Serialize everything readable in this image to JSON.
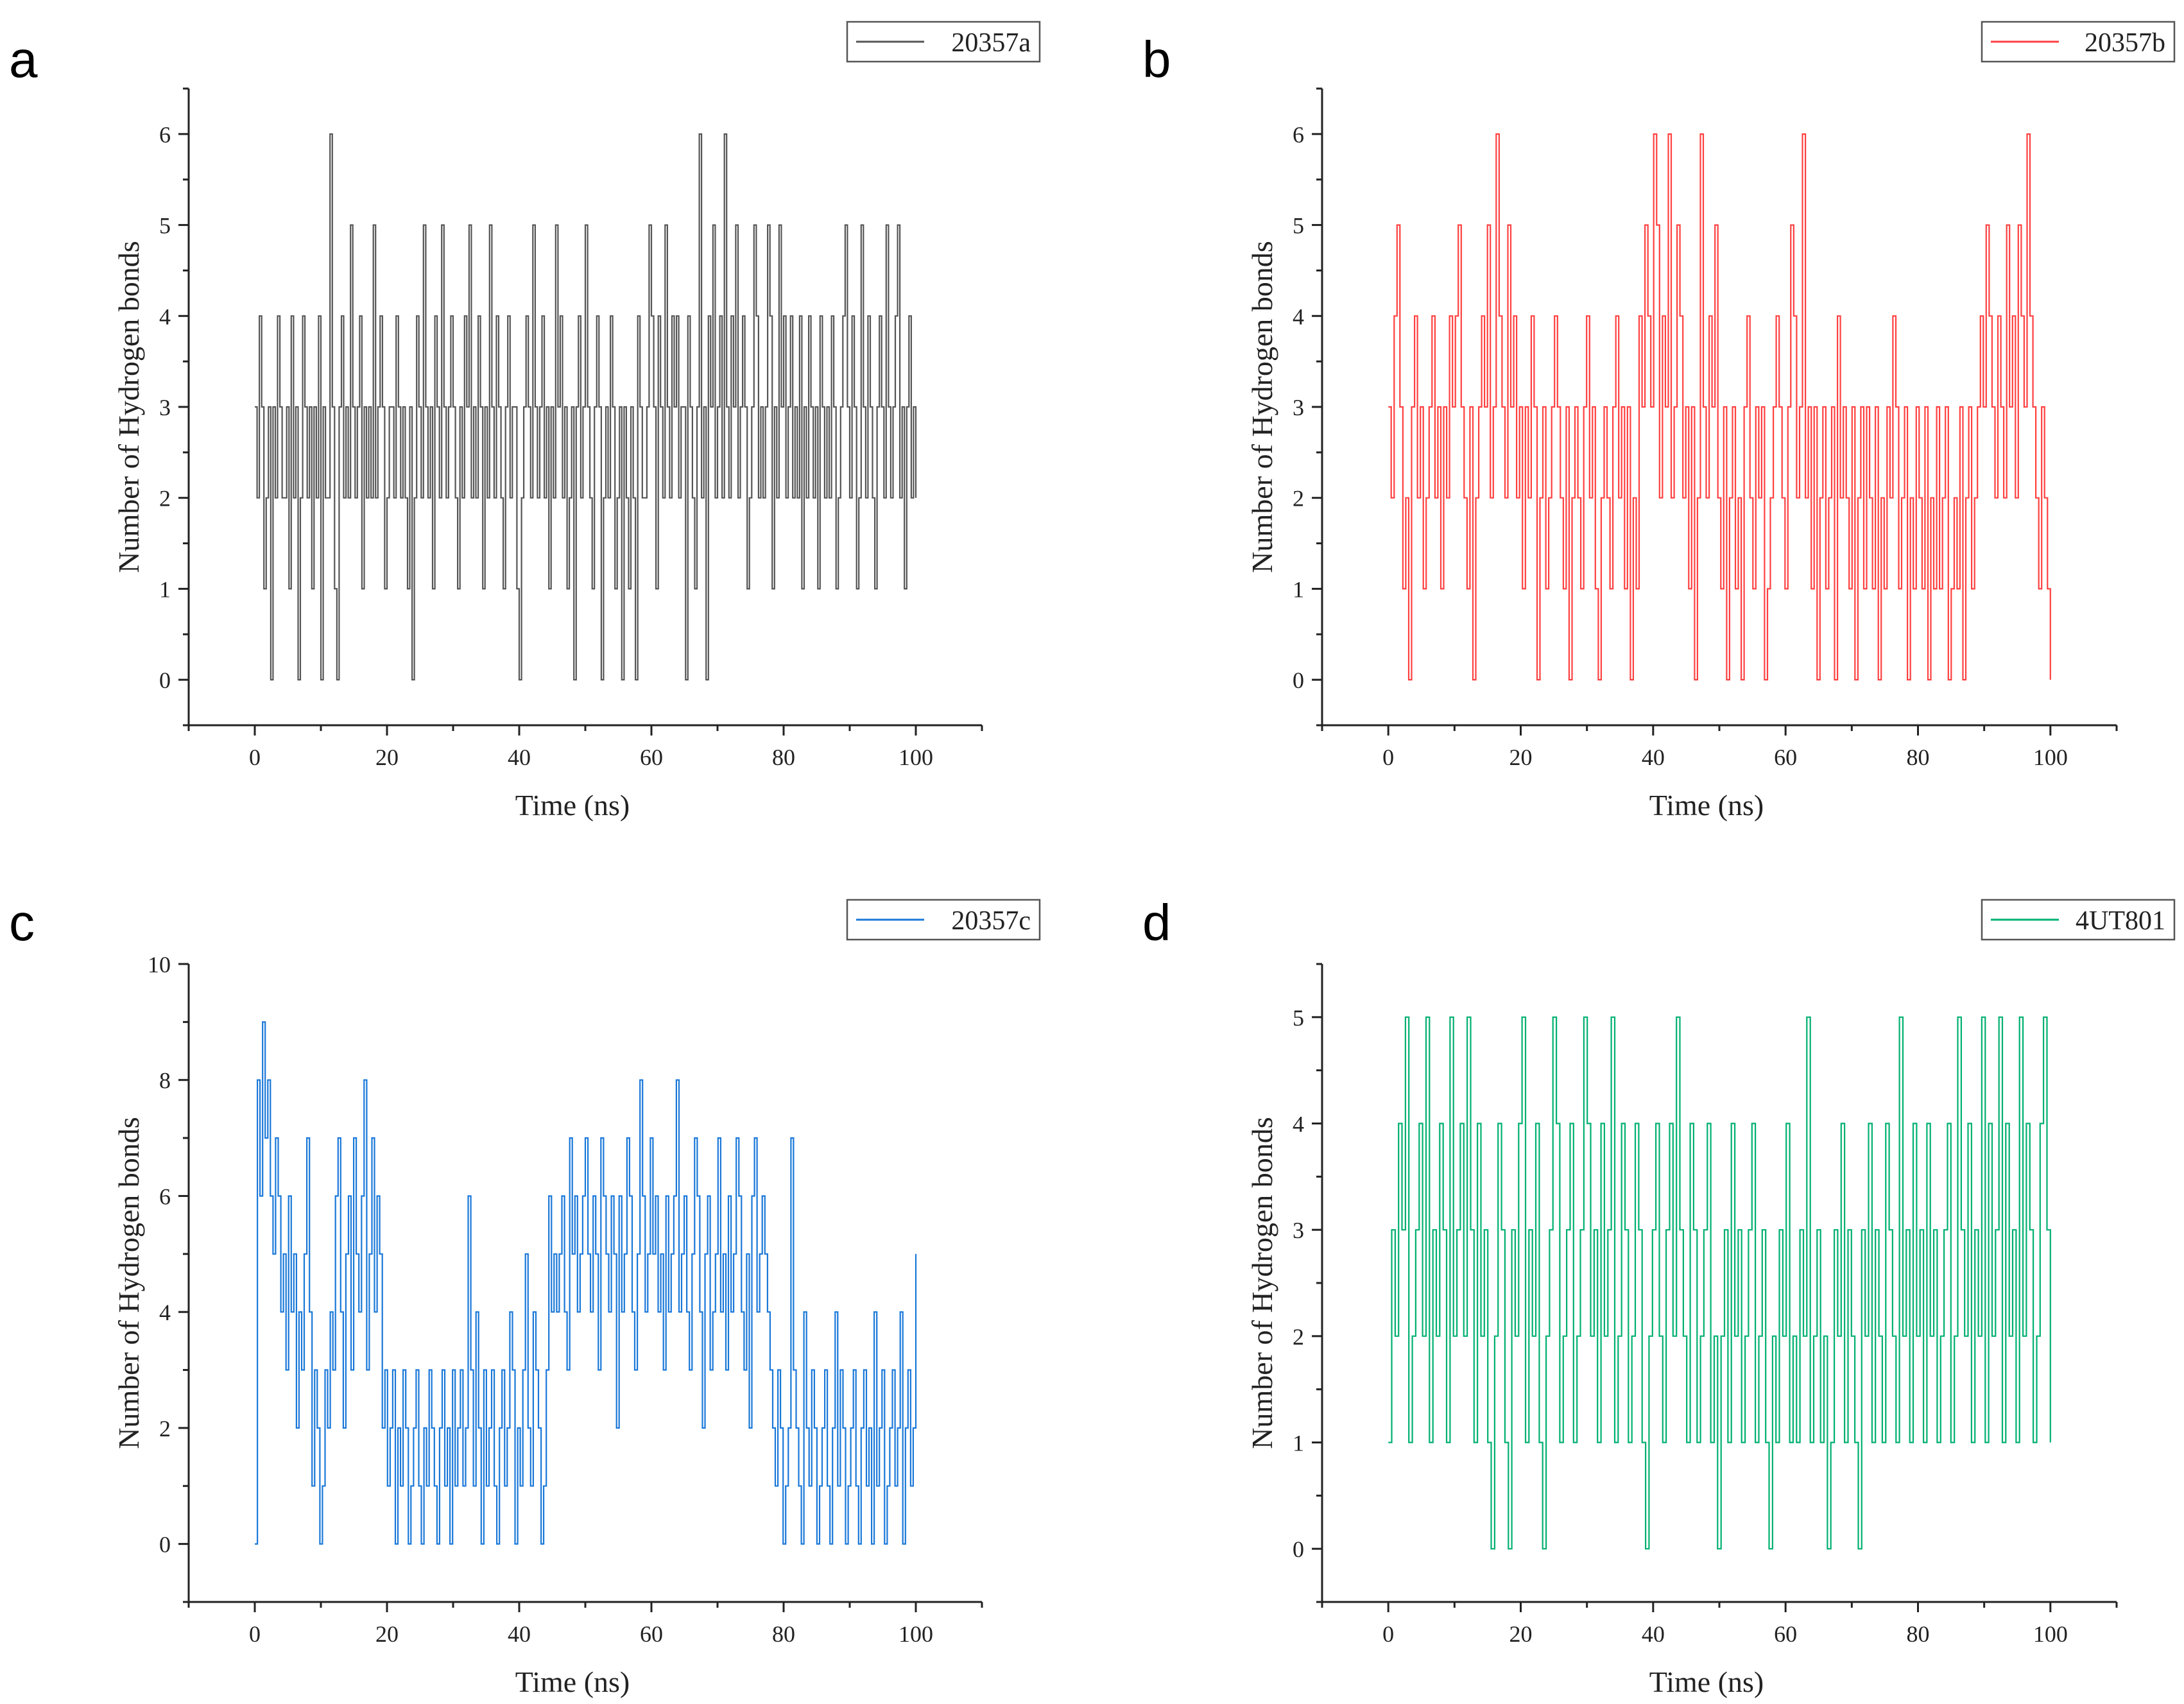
{
  "chart_data": [
    {
      "type": "line",
      "panel": "a",
      "series": [
        {
          "name": "20357a",
          "color": "#555555",
          "values": [
            3,
            2,
            4,
            3,
            1,
            2,
            3,
            0,
            3,
            2,
            4,
            3,
            2,
            2,
            3,
            1,
            4,
            2,
            3,
            0,
            2,
            4,
            3,
            2,
            3,
            1,
            3,
            2,
            4,
            0,
            3,
            2,
            2,
            6,
            3,
            1,
            0,
            3,
            4,
            2,
            3,
            2,
            5,
            3,
            2,
            3,
            4,
            1,
            3,
            2,
            3,
            2,
            5,
            2,
            3,
            4,
            3,
            1,
            2,
            3,
            3,
            2,
            4,
            3,
            2,
            3,
            2,
            1,
            3,
            0,
            2,
            4,
            3,
            2,
            5,
            3,
            2,
            3,
            1,
            4,
            3,
            2,
            5,
            3,
            2,
            3,
            4,
            3,
            2,
            1,
            3,
            2,
            4,
            3,
            5,
            2,
            3,
            2,
            4,
            3,
            1,
            3,
            2,
            5,
            3,
            2,
            4,
            3,
            2,
            1,
            3,
            4,
            2,
            3,
            3,
            1,
            0,
            2,
            3,
            4,
            3,
            2,
            5,
            3,
            2,
            3,
            4,
            2,
            3,
            1,
            3,
            2,
            5,
            3,
            4,
            2,
            3,
            1,
            2,
            3,
            0,
            3,
            4,
            2,
            3,
            5,
            3,
            2,
            1,
            3,
            4,
            3,
            0,
            2,
            3,
            2,
            4,
            3,
            1,
            2,
            3,
            0,
            3,
            2,
            1,
            3,
            2,
            0,
            4,
            3,
            2,
            2,
            3,
            5,
            4,
            3,
            1,
            4,
            3,
            2,
            5,
            3,
            2,
            4,
            3,
            4,
            2,
            3,
            3,
            0,
            4,
            3,
            2,
            1,
            3,
            6,
            2,
            3,
            0,
            4,
            3,
            5,
            2,
            3,
            4,
            2,
            6,
            3,
            2,
            4,
            3,
            5,
            2,
            3,
            4,
            3,
            1,
            2,
            3,
            5,
            4,
            2,
            3,
            2,
            3,
            5,
            4,
            1,
            3,
            2,
            5,
            3,
            4,
            2,
            3,
            4,
            2,
            3,
            2,
            4,
            1,
            3,
            2,
            4,
            3,
            2,
            3,
            1,
            4,
            3,
            2,
            3,
            2,
            4,
            3,
            1,
            2,
            3,
            4,
            5,
            3,
            2,
            4,
            3,
            1,
            2,
            5,
            3,
            2,
            4,
            3,
            2,
            1,
            3,
            4,
            3,
            2,
            5,
            3,
            2,
            3,
            4,
            5,
            2,
            3,
            1,
            3,
            4,
            2,
            3,
            2
          ]
        }
      ],
      "title": "",
      "xlabel": "Time (ns)",
      "ylabel": "Number of Hydrogen bonds",
      "xlim": [
        -10,
        110
      ],
      "ylim": [
        -0.5,
        6.5
      ],
      "xticks": [
        0,
        20,
        40,
        60,
        80,
        100
      ],
      "yticks": [
        0,
        1,
        2,
        3,
        4,
        5,
        6
      ],
      "legend": "top-right"
    },
    {
      "type": "line",
      "panel": "b",
      "series": [
        {
          "name": "20357b",
          "color": "#ff4040",
          "values": [
            3,
            2,
            4,
            5,
            3,
            1,
            2,
            0,
            3,
            4,
            2,
            3,
            1,
            2,
            3,
            4,
            2,
            3,
            1,
            3,
            2,
            4,
            3,
            4,
            5,
            3,
            2,
            1,
            3,
            0,
            2,
            3,
            4,
            3,
            5,
            2,
            3,
            6,
            4,
            3,
            2,
            5,
            3,
            4,
            2,
            3,
            1,
            3,
            2,
            4,
            3,
            0,
            2,
            3,
            1,
            2,
            3,
            4,
            3,
            2,
            1,
            3,
            0,
            2,
            3,
            2,
            1,
            3,
            4,
            2,
            3,
            1,
            0,
            2,
            3,
            2,
            1,
            3,
            4,
            2,
            3,
            1,
            3,
            0,
            2,
            1,
            4,
            3,
            5,
            4,
            3,
            6,
            5,
            2,
            4,
            3,
            6,
            2,
            3,
            5,
            4,
            2,
            3,
            1,
            3,
            0,
            2,
            6,
            3,
            2,
            4,
            3,
            5,
            2,
            1,
            3,
            0,
            2,
            3,
            1,
            2,
            0,
            3,
            4,
            2,
            1,
            3,
            2,
            3,
            0,
            1,
            2,
            3,
            4,
            3,
            2,
            1,
            3,
            5,
            4,
            2,
            3,
            6,
            2,
            3,
            1,
            3,
            0,
            2,
            3,
            1,
            2,
            3,
            0,
            4,
            2,
            3,
            2,
            1,
            3,
            0,
            2,
            3,
            1,
            3,
            2,
            1,
            3,
            0,
            2,
            1,
            3,
            2,
            4,
            3,
            1,
            2,
            3,
            0,
            2,
            1,
            3,
            2,
            1,
            3,
            0,
            2,
            1,
            3,
            1,
            2,
            3,
            0,
            1,
            2,
            1,
            3,
            0,
            2,
            3,
            1,
            2,
            3,
            4,
            3,
            5,
            4,
            3,
            2,
            4,
            3,
            2,
            5,
            3,
            4,
            2,
            5,
            4,
            3,
            6,
            4,
            3,
            2,
            1,
            3,
            2,
            1,
            0
          ]
        }
      ],
      "title": "",
      "xlabel": "Time (ns)",
      "ylabel": "Number of Hydrogen bonds",
      "xlim": [
        -10,
        110
      ],
      "ylim": [
        -0.5,
        6.5
      ],
      "xticks": [
        0,
        20,
        40,
        60,
        80,
        100
      ],
      "yticks": [
        0,
        1,
        2,
        3,
        4,
        5,
        6
      ],
      "legend": "top-right"
    },
    {
      "type": "line",
      "panel": "c",
      "series": [
        {
          "name": "20357c",
          "color": "#1a78d8",
          "values": [
            0,
            8,
            6,
            9,
            7,
            8,
            6,
            5,
            7,
            6,
            4,
            5,
            3,
            6,
            4,
            5,
            2,
            4,
            3,
            5,
            7,
            4,
            1,
            3,
            2,
            0,
            1,
            3,
            2,
            4,
            3,
            6,
            7,
            4,
            2,
            5,
            6,
            3,
            7,
            5,
            4,
            6,
            8,
            3,
            5,
            7,
            4,
            6,
            5,
            2,
            3,
            1,
            2,
            3,
            0,
            2,
            1,
            3,
            2,
            0,
            1,
            2,
            3,
            1,
            0,
            2,
            1,
            3,
            2,
            1,
            0,
            2,
            3,
            1,
            2,
            0,
            3,
            1,
            2,
            3,
            1,
            2,
            6,
            3,
            1,
            4,
            2,
            0,
            3,
            1,
            2,
            3,
            1,
            0,
            2,
            3,
            1,
            2,
            4,
            3,
            0,
            2,
            1,
            3,
            5,
            2,
            1,
            4,
            3,
            2,
            0,
            1,
            3,
            6,
            4,
            5,
            4,
            5,
            6,
            4,
            3,
            7,
            5,
            6,
            4,
            5,
            6,
            7,
            5,
            4,
            6,
            5,
            3,
            7,
            6,
            5,
            4,
            6,
            5,
            2,
            6,
            4,
            5,
            7,
            6,
            4,
            3,
            5,
            8,
            6,
            4,
            5,
            7,
            5,
            6,
            4,
            5,
            3,
            6,
            4,
            5,
            6,
            8,
            4,
            5,
            6,
            4,
            3,
            5,
            7,
            6,
            4,
            2,
            5,
            6,
            3,
            4,
            5,
            7,
            4,
            5,
            3,
            6,
            4,
            5,
            7,
            6,
            4,
            3,
            5,
            2,
            6,
            7,
            4,
            5,
            6,
            5,
            4,
            3,
            2,
            1,
            3,
            2,
            0,
            1,
            2,
            7,
            3,
            2,
            1,
            0,
            4,
            2,
            1,
            3,
            2,
            0,
            1,
            2,
            3,
            1,
            0,
            2,
            4,
            1,
            3,
            2,
            0,
            1,
            2,
            3,
            1,
            0,
            2,
            3,
            1,
            2,
            0,
            4,
            1,
            2,
            3,
            0,
            1,
            2,
            3,
            1,
            2,
            4,
            0,
            2,
            3,
            1,
            2,
            5
          ]
        }
      ],
      "title": "",
      "xlabel": "Time (ns)",
      "ylabel": "Number of Hydrogen bonds",
      "xlim": [
        -10,
        110
      ],
      "ylim": [
        -1,
        10
      ],
      "xticks": [
        0,
        20,
        40,
        60,
        80,
        100
      ],
      "yticks": [
        0,
        2,
        4,
        6,
        8,
        10
      ],
      "legend": "top-right"
    },
    {
      "type": "line",
      "panel": "d",
      "series": [
        {
          "name": "4UT801",
          "color": "#00b070",
          "values": [
            1,
            3,
            2,
            4,
            3,
            5,
            1,
            2,
            3,
            4,
            2,
            5,
            1,
            3,
            2,
            4,
            3,
            1,
            5,
            2,
            3,
            4,
            2,
            5,
            3,
            1,
            4,
            2,
            3,
            1,
            0,
            2,
            4,
            3,
            1,
            0,
            3,
            2,
            4,
            5,
            1,
            3,
            2,
            4,
            1,
            0,
            2,
            3,
            5,
            4,
            1,
            2,
            3,
            4,
            1,
            2,
            3,
            5,
            4,
            2,
            3,
            1,
            4,
            2,
            3,
            5,
            1,
            2,
            4,
            3,
            1,
            2,
            4,
            3,
            1,
            0,
            2,
            3,
            4,
            2,
            1,
            3,
            4,
            2,
            5,
            3,
            2,
            1,
            4,
            3,
            1,
            2,
            3,
            4,
            1,
            2,
            0,
            2,
            3,
            1,
            4,
            2,
            3,
            1,
            2,
            3,
            4,
            1,
            2,
            3,
            1,
            0,
            2,
            1,
            3,
            2,
            4,
            1,
            2,
            1,
            3,
            2,
            5,
            1,
            2,
            3,
            1,
            2,
            0,
            1,
            3,
            2,
            4,
            1,
            3,
            2,
            1,
            0,
            3,
            2,
            4,
            1,
            3,
            2,
            1,
            4,
            3,
            2,
            1,
            5,
            2,
            3,
            1,
            4,
            2,
            3,
            1,
            4,
            2,
            3,
            1,
            2,
            3,
            4,
            1,
            2,
            5,
            3,
            2,
            4,
            1,
            3,
            2,
            5,
            1,
            4,
            2,
            3,
            5,
            1,
            4,
            2,
            3,
            1,
            5,
            2,
            4,
            3,
            1,
            2,
            4,
            5,
            3,
            1
          ]
        }
      ],
      "title": "",
      "xlabel": "Time (ns)",
      "ylabel": "Number of Hydrogen bonds",
      "xlim": [
        -10,
        110
      ],
      "ylim": [
        -0.5,
        5.5
      ],
      "xticks": [
        0,
        20,
        40,
        60,
        80,
        100
      ],
      "yticks": [
        0,
        1,
        2,
        3,
        4,
        5
      ],
      "legend": "top-right"
    }
  ]
}
